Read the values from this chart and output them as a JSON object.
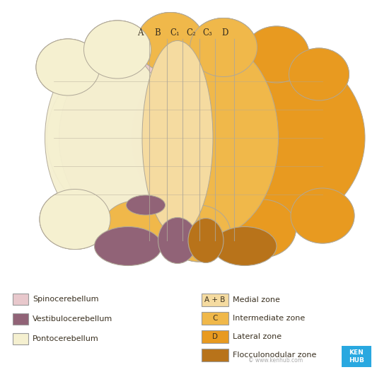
{
  "background_color": "#ffffff",
  "colors": {
    "pontocerebellum": "#f5f0d0",
    "spinocerebellum": "#e8c8cc",
    "vestibulocerebellum": "#916377",
    "medial_zone_AB": "#f5dba0",
    "intermediate_zone_C": "#f0b84a",
    "lateral_zone_D": "#e89a20",
    "flocculonodular": "#b8731a",
    "outline": "#b0a898",
    "text": "#3a3020",
    "kenhub_blue": "#29a8e0"
  },
  "legend_left": [
    {
      "label": "Spinocerebellum",
      "color": "#e8c8cc"
    },
    {
      "label": "Vestibulocerebellum",
      "color": "#916377"
    },
    {
      "label": "Pontocerebellum",
      "color": "#f5f0d0"
    }
  ],
  "legend_right": [
    {
      "label": "A + B",
      "sublabel": "Medial zone",
      "color": "#f5dba0"
    },
    {
      "label": "C",
      "sublabel": "Intermediate zone",
      "color": "#f0b84a"
    },
    {
      "label": "D",
      "sublabel": "Lateral zone",
      "color": "#e89a20"
    },
    {
      "label": "",
      "sublabel": "Flocculonodular zone",
      "color": "#b8731a"
    }
  ],
  "zone_labels": [
    "A",
    "B",
    "C₁",
    "C₂",
    "C₃",
    "D"
  ]
}
